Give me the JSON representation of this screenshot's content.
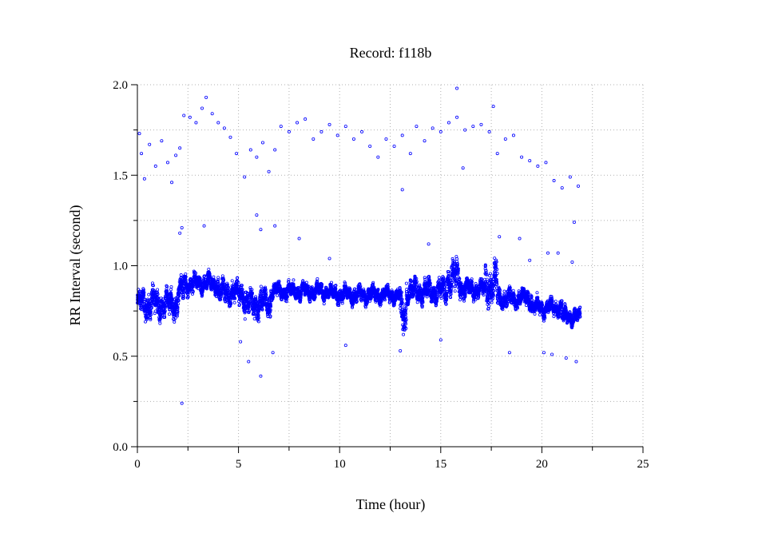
{
  "chart_data": {
    "type": "scatter",
    "title": "Record:  f118b",
    "xlabel": "Time (hour)",
    "ylabel": "RR Interval (second)",
    "xlim": [
      0,
      25
    ],
    "ylim": [
      0,
      2
    ],
    "x_ticks": [
      "0",
      "5",
      "10",
      "15",
      "20",
      "25"
    ],
    "y_ticks": [
      "0.0",
      "0.5",
      "1.0",
      "1.5",
      "2.0"
    ],
    "grid": true,
    "marker_color": "#0000ff",
    "marker": "hollow-circle",
    "series": [
      {
        "segments": [
          {
            "from": 0.0,
            "to": 2.0,
            "mean": 0.79,
            "spread": 0.06
          },
          {
            "from": 2.0,
            "to": 2.3,
            "mean": 0.86,
            "spread": 0.05
          },
          {
            "from": 2.3,
            "to": 4.0,
            "mean": 0.9,
            "spread": 0.04
          },
          {
            "from": 4.0,
            "to": 5.3,
            "mean": 0.85,
            "spread": 0.05
          },
          {
            "from": 5.3,
            "to": 6.6,
            "mean": 0.79,
            "spread": 0.06
          },
          {
            "from": 6.6,
            "to": 9.5,
            "mean": 0.86,
            "spread": 0.035
          },
          {
            "from": 9.5,
            "to": 13.0,
            "mean": 0.84,
            "spread": 0.035
          },
          {
            "from": 13.0,
            "to": 13.3,
            "mean": 0.72,
            "spread": 0.09
          },
          {
            "from": 13.3,
            "to": 15.3,
            "mean": 0.86,
            "spread": 0.05
          },
          {
            "from": 15.3,
            "to": 16.0,
            "mean": 0.93,
            "spread": 0.07
          },
          {
            "from": 16.0,
            "to": 17.2,
            "mean": 0.87,
            "spread": 0.04
          },
          {
            "from": 17.2,
            "to": 17.8,
            "mean": 0.9,
            "spread": 0.09
          },
          {
            "from": 17.8,
            "to": 19.5,
            "mean": 0.82,
            "spread": 0.04
          },
          {
            "from": 19.5,
            "to": 21.0,
            "mean": 0.77,
            "spread": 0.035
          },
          {
            "from": 21.0,
            "to": 21.9,
            "mean": 0.72,
            "spread": 0.035
          }
        ],
        "outliers_upper": [
          [
            0.1,
            1.73
          ],
          [
            0.2,
            1.62
          ],
          [
            0.35,
            1.48
          ],
          [
            0.6,
            1.67
          ],
          [
            0.9,
            1.55
          ],
          [
            1.2,
            1.69
          ],
          [
            1.5,
            1.57
          ],
          [
            1.7,
            1.46
          ],
          [
            1.9,
            1.61
          ],
          [
            2.1,
            1.65
          ],
          [
            2.3,
            1.83
          ],
          [
            2.6,
            1.82
          ],
          [
            2.9,
            1.79
          ],
          [
            3.2,
            1.87
          ],
          [
            3.4,
            1.93
          ],
          [
            3.7,
            1.84
          ],
          [
            4.0,
            1.79
          ],
          [
            4.3,
            1.76
          ],
          [
            4.6,
            1.71
          ],
          [
            4.9,
            1.62
          ],
          [
            5.3,
            1.49
          ],
          [
            5.6,
            1.64
          ],
          [
            5.9,
            1.6
          ],
          [
            6.2,
            1.68
          ],
          [
            6.5,
            1.52
          ],
          [
            6.8,
            1.64
          ],
          [
            7.1,
            1.77
          ],
          [
            7.5,
            1.74
          ],
          [
            7.9,
            1.79
          ],
          [
            8.3,
            1.81
          ],
          [
            8.7,
            1.7
          ],
          [
            9.1,
            1.74
          ],
          [
            9.5,
            1.78
          ],
          [
            9.9,
            1.72
          ],
          [
            10.3,
            1.77
          ],
          [
            10.7,
            1.7
          ],
          [
            11.1,
            1.74
          ],
          [
            11.5,
            1.66
          ],
          [
            11.9,
            1.6
          ],
          [
            12.3,
            1.7
          ],
          [
            12.7,
            1.66
          ],
          [
            13.1,
            1.72
          ],
          [
            13.5,
            1.62
          ],
          [
            13.8,
            1.77
          ],
          [
            14.2,
            1.69
          ],
          [
            14.6,
            1.76
          ],
          [
            15.0,
            1.74
          ],
          [
            15.4,
            1.79
          ],
          [
            15.8,
            1.82
          ],
          [
            16.2,
            1.75
          ],
          [
            16.6,
            1.77
          ],
          [
            17.0,
            1.78
          ],
          [
            17.4,
            1.74
          ],
          [
            17.8,
            1.62
          ],
          [
            18.2,
            1.7
          ],
          [
            18.6,
            1.72
          ],
          [
            19.0,
            1.6
          ],
          [
            19.4,
            1.58
          ],
          [
            19.8,
            1.55
          ],
          [
            20.2,
            1.57
          ],
          [
            20.6,
            1.47
          ],
          [
            21.0,
            1.43
          ],
          [
            21.4,
            1.49
          ],
          [
            21.8,
            1.44
          ]
        ],
        "outliers_other": [
          [
            2.2,
            0.24
          ],
          [
            2.1,
            1.18
          ],
          [
            2.2,
            1.21
          ],
          [
            3.3,
            1.22
          ],
          [
            5.1,
            0.58
          ],
          [
            5.5,
            0.47
          ],
          [
            5.9,
            1.28
          ],
          [
            6.1,
            1.2
          ],
          [
            6.1,
            0.39
          ],
          [
            6.8,
            1.22
          ],
          [
            6.7,
            0.52
          ],
          [
            8.0,
            1.15
          ],
          [
            9.5,
            1.04
          ],
          [
            10.3,
            0.56
          ],
          [
            13.0,
            0.53
          ],
          [
            13.1,
            1.42
          ],
          [
            14.4,
            1.12
          ],
          [
            15.0,
            0.59
          ],
          [
            15.8,
            1.98
          ],
          [
            16.1,
            1.54
          ],
          [
            17.6,
            1.88
          ],
          [
            17.9,
            1.16
          ],
          [
            18.4,
            0.52
          ],
          [
            18.9,
            1.15
          ],
          [
            19.4,
            1.03
          ],
          [
            20.1,
            0.52
          ],
          [
            20.5,
            0.51
          ],
          [
            20.8,
            1.07
          ],
          [
            21.2,
            0.49
          ],
          [
            21.5,
            1.02
          ],
          [
            21.7,
            0.47
          ],
          [
            21.6,
            1.24
          ],
          [
            20.3,
            1.07
          ]
        ]
      }
    ]
  }
}
